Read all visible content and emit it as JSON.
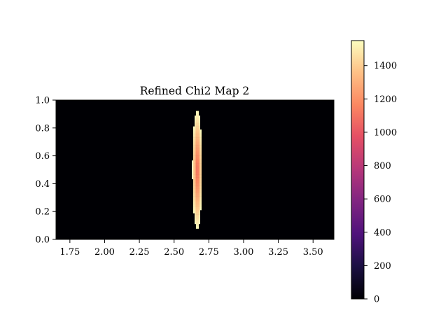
{
  "chart_data": {
    "type": "heatmap",
    "title": "Refined Chi2 Map 2",
    "xlabel": "",
    "ylabel": "",
    "xlim": [
      1.65,
      3.65
    ],
    "ylim": [
      0.0,
      1.0
    ],
    "x_ticks": [
      "1.75",
      "2.00",
      "2.25",
      "2.50",
      "2.75",
      "3.00",
      "3.25",
      "3.50"
    ],
    "y_ticks": [
      "0.0",
      "0.2",
      "0.4",
      "0.6",
      "0.8",
      "1.0"
    ],
    "colormap": "magma",
    "colorbar": {
      "range": [
        0,
        1550
      ],
      "ticks": [
        "0",
        "200",
        "400",
        "600",
        "800",
        "1000",
        "1200",
        "1400"
      ]
    },
    "background_value": 0,
    "feature": {
      "description_type": "narrow vertical ellipse",
      "x_center": 2.667,
      "y_center": 0.5,
      "x_half_width": 0.035,
      "y_half_height": 0.43,
      "edge_value": 1550,
      "center_value": 1050
    }
  }
}
